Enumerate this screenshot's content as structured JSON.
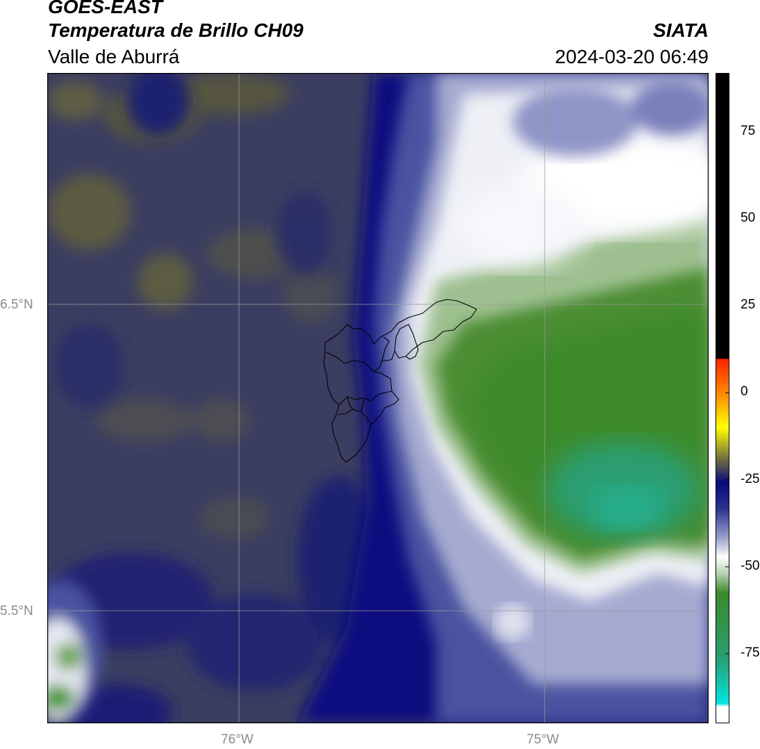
{
  "header": {
    "title_line1": "GOES-EAST",
    "title_line2": "Temperatura de Brillo CH09",
    "subtitle": "Valle de Aburrá",
    "organization": "SIATA",
    "timestamp": "2024-03-20 06:49"
  },
  "map": {
    "lat_labels": [
      "6.5°N",
      "5.5°N"
    ],
    "lon_labels": [
      "76°W",
      "75°W"
    ],
    "gridlines": true,
    "colors": {
      "background_warm": "#3a3d5e",
      "deep_blue": "#0c0f78",
      "cold_white": "#f2f3f8",
      "green_dark": "#4a8a2a",
      "green_teal": "#2a9e72",
      "olive": "#5b5a44",
      "boundary": "#000000"
    }
  },
  "colorbar": {
    "tick_labels": [
      "75",
      "50",
      "25",
      "0",
      "-25",
      "-50",
      "-75"
    ],
    "ticks": [
      75,
      50,
      25,
      0,
      -25,
      -50,
      -75
    ],
    "range": [
      -95,
      92
    ],
    "colors": {
      "black": "#000000",
      "red": "#ff2200",
      "orange": "#ff9900",
      "yellow": "#ffff00",
      "olive": "#7a7a3a",
      "navy": "#0a0a7a",
      "lavender": "#9aa0cc",
      "white": "#ffffff",
      "green": "#3a8a2a",
      "cyan": "#00e5e0"
    }
  }
}
